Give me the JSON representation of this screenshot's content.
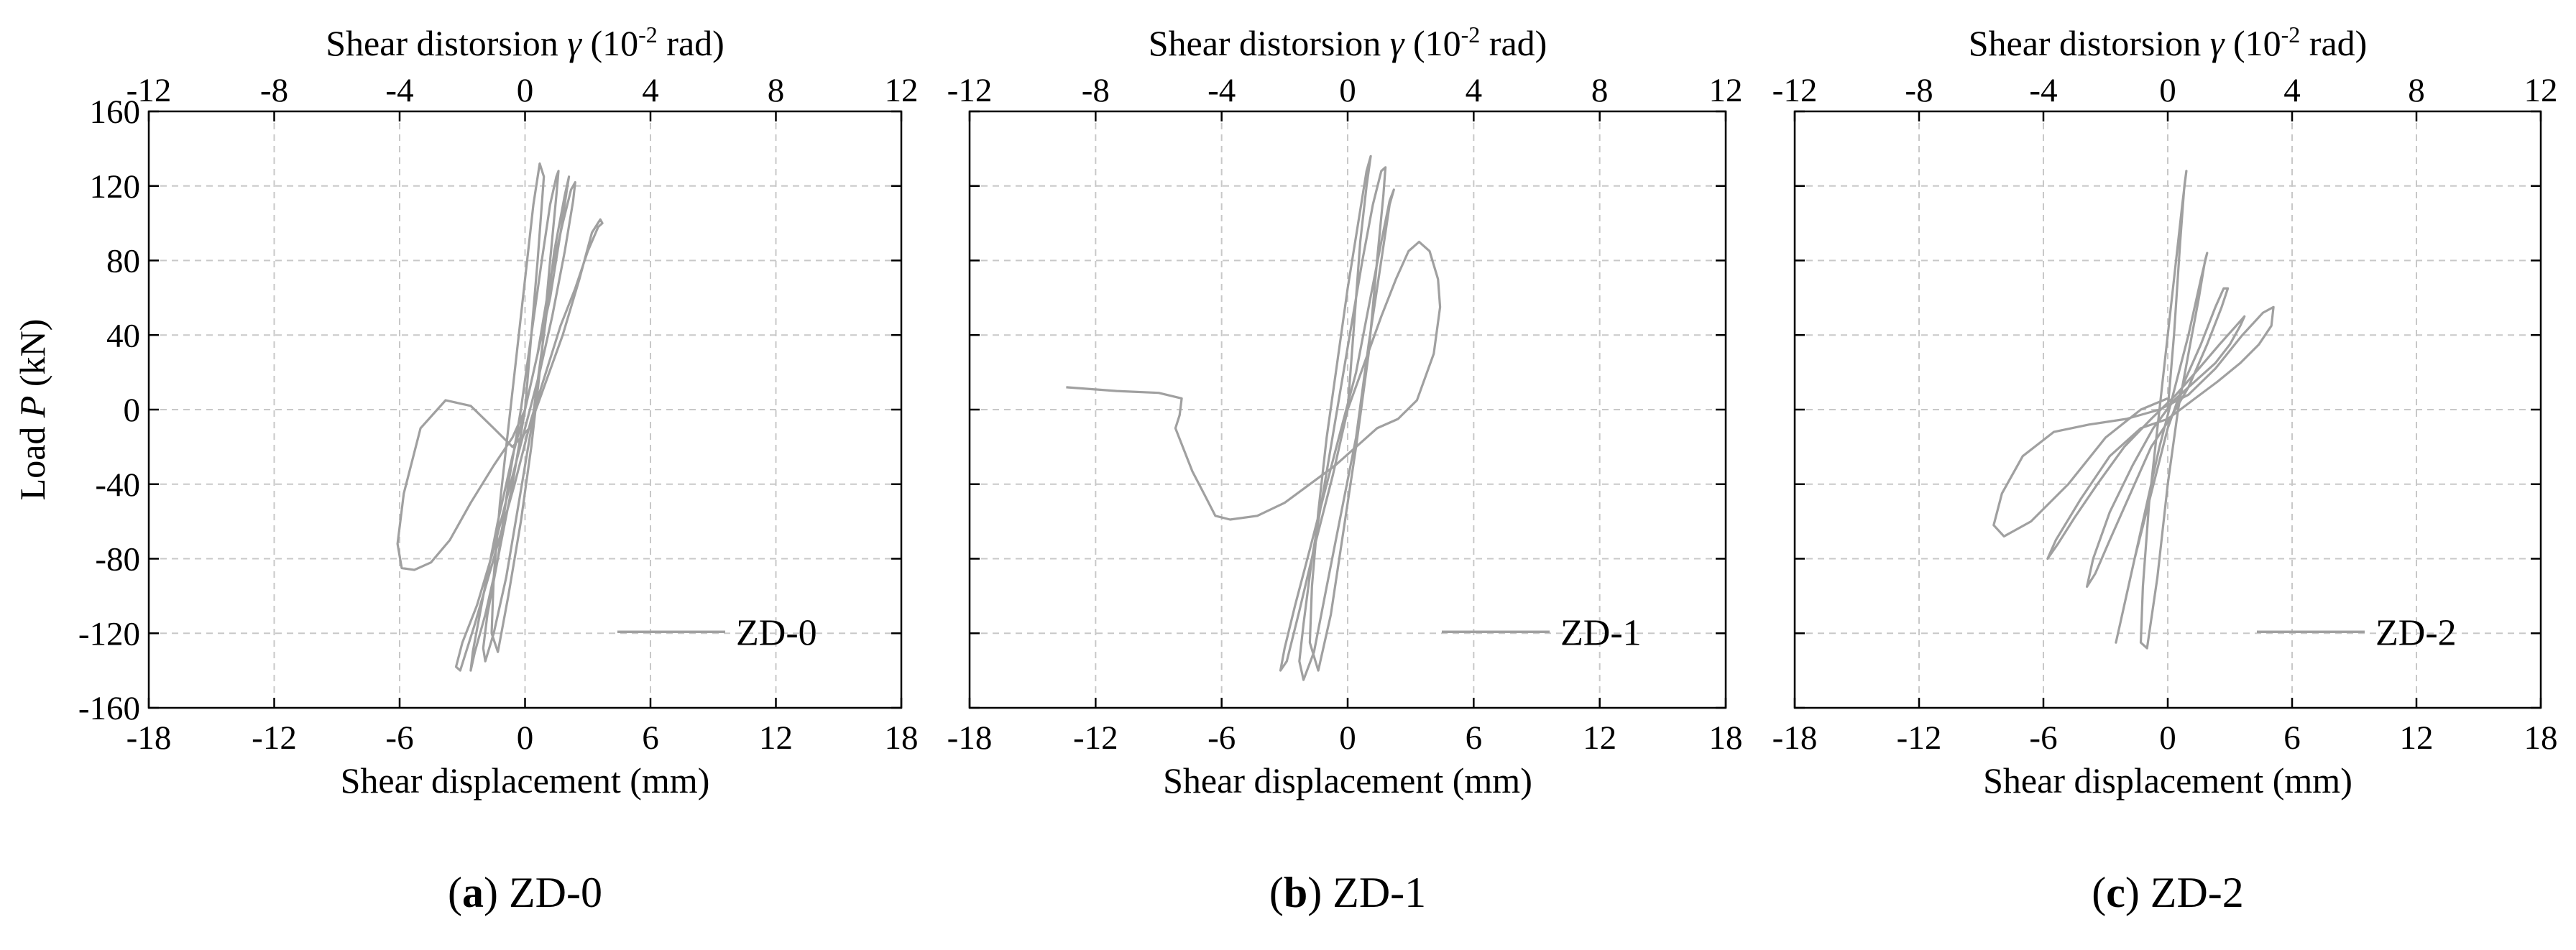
{
  "figure": {
    "captions": [
      {
        "letter": "a",
        "text": " ZD-0"
      },
      {
        "letter": "b",
        "text": " ZD-1"
      },
      {
        "letter": "c",
        "text": " ZD-2"
      }
    ]
  },
  "axes_text": {
    "xlabel": "Shear displacement (mm)",
    "ylabel_prefix": "Load ",
    "ylabel_var": "P",
    "ylabel_suffix": " (kN)",
    "top_label_prefix": "Shear distorsion ",
    "top_label_var": "γ",
    "top_label_unit_a": " (10",
    "top_label_exp": "-2",
    "top_label_unit_b": " rad)"
  },
  "colors": {
    "curve": "#a0a0a0",
    "grid": "#c8c8c8",
    "axis": "#000000"
  },
  "chart_data": [
    {
      "type": "line",
      "name": "ZD-0",
      "legend": "ZD-0",
      "legend_position": "bottom-right",
      "xlabel": "Shear displacement (mm)",
      "ylabel": "Load P (kN)",
      "xlim": [
        -18,
        18
      ],
      "ylim": [
        -160,
        160
      ],
      "xticks": [
        -18,
        -12,
        -6,
        0,
        6,
        12,
        18
      ],
      "yticks": [
        160,
        120,
        80,
        40,
        0,
        -40,
        -80,
        -120,
        -160
      ],
      "top_xlabel": "Shear distorsion γ (10-2 rad)",
      "top_xlim": [
        -12,
        12
      ],
      "top_xticks": [
        -12,
        -8,
        -4,
        0,
        4,
        8,
        12
      ],
      "grid": true,
      "series": [
        {
          "name": "ZD-0",
          "x": [
            0,
            0.3,
            0.6,
            0.8,
            0.9,
            0.7,
            0.4,
            0,
            -0.4,
            -0.8,
            -1.2,
            -1.5,
            -1.6,
            -1.3,
            -0.8,
            -0.2,
            0.3,
            0.8,
            1.2,
            1.5,
            1.6,
            1.5,
            1.2,
            0.8,
            0.3,
            -0.2,
            -0.8,
            -1.3,
            -1.8,
            -2.0,
            -1.9,
            -1.5,
            -0.9,
            -0.3,
            0.3,
            0.9,
            1.4,
            1.9,
            2.1,
            2.0,
            1.7,
            1.2,
            0.6,
            0,
            -0.6,
            -1.3,
            -1.9,
            -2.4,
            -2.6,
            -2.5,
            -2.0,
            -1.3,
            -0.6,
            0,
            0.6,
            1.2,
            1.8,
            2.2,
            2.4,
            2.3,
            1.9,
            1.3,
            0.7,
            0,
            -0.7,
            -1.5,
            -2.3,
            -3.0,
            -3.3,
            -3.1,
            -2.4,
            -1.5,
            -0.5,
            0.3,
            1.0,
            1.7,
            2.4,
            3.0,
            3.5,
            3.7,
            3.6,
            3.2,
            2.6,
            1.8,
            1.0,
            0.2,
            -0.6,
            -1.5,
            -2.6,
            -3.8,
            -5.0,
            -5.8,
            -6.1,
            -5.9,
            -5.3,
            -4.5,
            -3.6,
            -2.6,
            -1.5,
            -0.6,
            0
          ],
          "y": [
            0,
            40,
            80,
            110,
            125,
            132,
            110,
            70,
            30,
            -10,
            -50,
            -90,
            -120,
            -130,
            -100,
            -60,
            -20,
            30,
            80,
            115,
            128,
            125,
            110,
            80,
            40,
            0,
            -40,
            -80,
            -110,
            -128,
            -135,
            -120,
            -90,
            -50,
            -10,
            40,
            85,
            115,
            125,
            118,
            95,
            60,
            30,
            0,
            -40,
            -80,
            -110,
            -130,
            -140,
            -130,
            -100,
            -60,
            -25,
            0,
            30,
            70,
            100,
            118,
            122,
            112,
            85,
            50,
            20,
            -10,
            -40,
            -75,
            -105,
            -125,
            -138,
            -140,
            -115,
            -80,
            -40,
            -5,
            20,
            45,
            65,
            85,
            98,
            100,
            102,
            95,
            70,
            40,
            15,
            -10,
            -20,
            -10,
            2,
            5,
            -10,
            -45,
            -72,
            -85,
            -86,
            -82,
            -70,
            -50,
            -30,
            -15,
            0
          ]
        }
      ]
    },
    {
      "type": "line",
      "name": "ZD-1",
      "legend": "ZD-1",
      "legend_position": "bottom-right",
      "xlabel": "Shear displacement (mm)",
      "ylabel": "Load P (kN)",
      "xlim": [
        -18,
        18
      ],
      "ylim": [
        -160,
        160
      ],
      "xticks": [
        -18,
        -12,
        -6,
        0,
        6,
        12,
        18
      ],
      "yticks": [
        160,
        120,
        80,
        40,
        0,
        -40,
        -80,
        -120,
        -160
      ],
      "top_xlabel": "Shear distorsion γ (10-2 rad)",
      "top_xlim": [
        -12,
        12
      ],
      "top_xticks": [
        -12,
        -8,
        -4,
        0,
        4,
        8,
        12
      ],
      "grid": true,
      "series": [
        {
          "name": "ZD-1",
          "x": [
            0,
            0.3,
            0.6,
            0.9,
            1.1,
            0.9,
            0.5,
            0,
            -0.5,
            -1.0,
            -1.4,
            -1.7,
            -1.8,
            -1.4,
            -0.8,
            -0.2,
            0.4,
            1.0,
            1.4,
            1.7,
            1.8,
            1.6,
            1.2,
            0.7,
            0.1,
            -0.5,
            -1.1,
            -1.7,
            -2.1,
            -2.3,
            -2.1,
            -1.6,
            -1.0,
            -0.3,
            0.4,
            1.0,
            1.6,
            2.0,
            2.2,
            2.0,
            1.6,
            1.0,
            0.4,
            -0.3,
            -1.0,
            -1.8,
            -2.5,
            -3.0,
            -3.2,
            -2.9,
            -2.3,
            -1.5,
            -0.7,
            0,
            0.8,
            1.6,
            2.3,
            2.9,
            3.4,
            3.9,
            4.3,
            4.4,
            4.1,
            3.3,
            2.4,
            1.4,
            0.4,
            -0.6,
            -1.8,
            -3.0,
            -4.3,
            -5.6,
            -6.3,
            -6.8,
            -7.4,
            -8.2,
            -8.0,
            -7.9,
            -9.0,
            -11.0,
            -13.4
          ],
          "y": [
            0,
            45,
            90,
            120,
            136,
            128,
            100,
            65,
            25,
            -15,
            -55,
            -95,
            -125,
            -140,
            -110,
            -65,
            -20,
            30,
            80,
            115,
            130,
            128,
            110,
            80,
            40,
            0,
            -40,
            -80,
            -115,
            -135,
            -145,
            -130,
            -95,
            -55,
            -15,
            35,
            80,
            110,
            118,
            112,
            90,
            55,
            20,
            -10,
            -40,
            -75,
            -105,
            -128,
            -140,
            -135,
            -108,
            -70,
            -35,
            0,
            25,
            50,
            70,
            85,
            90,
            85,
            70,
            55,
            30,
            5,
            -5,
            -10,
            -20,
            -30,
            -40,
            -50,
            -57,
            -59,
            -57,
            -46,
            -33,
            -10,
            -3,
            6,
            9,
            10,
            12
          ]
        }
      ]
    },
    {
      "type": "line",
      "name": "ZD-2",
      "legend": "ZD-2",
      "legend_position": "bottom-right",
      "xlabel": "Shear displacement (mm)",
      "ylabel": "Load P (kN)",
      "xlim": [
        -18,
        18
      ],
      "ylim": [
        -160,
        160
      ],
      "xticks": [
        -18,
        -12,
        -6,
        0,
        6,
        12,
        18
      ],
      "yticks": [
        160,
        120,
        80,
        40,
        0,
        -40,
        -80,
        -120,
        -160
      ],
      "top_xlabel": "Shear distorsion γ (10-2 rad)",
      "top_xlim": [
        -12,
        12
      ],
      "top_xticks": [
        -12,
        -8,
        -4,
        0,
        4,
        8,
        12
      ],
      "grid": true,
      "series": [
        {
          "name": "ZD-2",
          "x": [
            0,
            0.3,
            0.6,
            0.8,
            0.9,
            0.7,
            0.3,
            -0.1,
            -0.5,
            -0.9,
            -1.2,
            -1.3,
            -1.0,
            -0.5,
            0,
            0.5,
            1.0,
            1.5,
            1.8,
            1.9,
            1.6,
            1.0,
            0.3,
            -0.4,
            -1.1,
            -1.8,
            -2.3,
            -2.5,
            -2.2,
            -1.6,
            -0.8,
            0,
            0.8,
            1.6,
            2.3,
            2.7,
            2.9,
            2.6,
            1.9,
            1.0,
            0.1,
            -0.8,
            -1.8,
            -2.8,
            -3.5,
            -3.9,
            -3.6,
            -2.8,
            -1.7,
            -0.7,
            0.3,
            1.3,
            2.3,
            3.0,
            3.5,
            3.7,
            3.3,
            2.5,
            1.5,
            0.4,
            -0.8,
            -2.1,
            -3.4,
            -4.5,
            -5.3,
            -5.8,
            -5.4,
            -4.2,
            -2.8,
            -1.3,
            0,
            1.2,
            2.4,
            3.5,
            4.4,
            5.0,
            5.1,
            4.6,
            3.6,
            2.3,
            1.0,
            -0.4,
            -2.0,
            -3.8,
            -5.5,
            -7.0,
            -8.0,
            -8.4,
            -7.9,
            -6.6,
            -4.8,
            -3.0,
            -1.3,
            0
          ],
          "y": [
            0,
            40,
            90,
            120,
            128,
            110,
            70,
            30,
            -10,
            -50,
            -95,
            -125,
            -128,
            -90,
            -40,
            0,
            30,
            60,
            80,
            84,
            70,
            40,
            10,
            -20,
            -55,
            -90,
            -115,
            -125,
            -110,
            -80,
            -45,
            -10,
            15,
            35,
            55,
            65,
            65,
            55,
            35,
            12,
            -5,
            -20,
            -45,
            -70,
            -88,
            -95,
            -80,
            -55,
            -30,
            -10,
            5,
            15,
            25,
            35,
            45,
            50,
            45,
            35,
            22,
            8,
            -5,
            -20,
            -40,
            -58,
            -72,
            -80,
            -70,
            -48,
            -25,
            -10,
            -5,
            5,
            15,
            25,
            35,
            45,
            55,
            52,
            40,
            22,
            8,
            0,
            -5,
            -8,
            -12,
            -25,
            -45,
            -62,
            -68,
            -60,
            -40,
            -15,
            0,
            6
          ]
        }
      ]
    }
  ]
}
